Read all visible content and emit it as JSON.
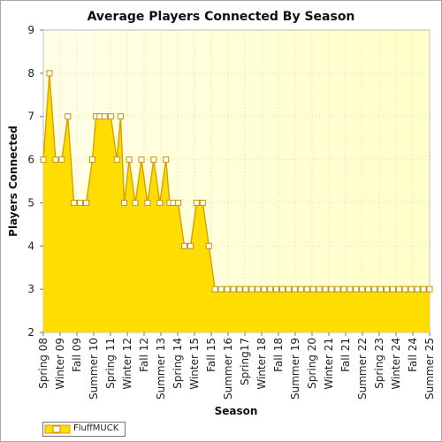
{
  "chart_data": {
    "type": "area",
    "title": "Average Players Connected By Season",
    "xlabel": "Season",
    "ylabel": "Players Connected",
    "ylim": [
      2,
      9
    ],
    "yticks": [
      2,
      3,
      4,
      5,
      6,
      7,
      8,
      9
    ],
    "grid": true,
    "legend_placement": "bottom-left",
    "colors": {
      "fill": "#ffdd00",
      "line": "#d6a100",
      "marker_fill": "#ffffff",
      "marker_edge": "#c59400",
      "plot_bg": "#ffffd0"
    },
    "x_labels": [
      "Spring 08",
      "Winter 09",
      "Fall 09",
      "Summer 10",
      "Spring 11",
      "Winter 12",
      "Fall 12",
      "Summer 13",
      "Spring 14",
      "Winter 15",
      "Fall 15",
      "Summer 16",
      "Spring17",
      "Winter 18",
      "Fall 18",
      "Summer 19",
      "Spring 20",
      "Winter 21",
      "Fall 21",
      "Summer 22",
      "Spring 23",
      "Winter 24",
      "Fall 24",
      "Summer 25"
    ],
    "series": [
      {
        "name": "FluffMUCK",
        "points": [
          [
            0,
            6
          ],
          [
            0.5,
            8
          ],
          [
            1,
            6
          ],
          [
            1.5,
            6
          ],
          [
            2,
            7
          ],
          [
            2.5,
            5
          ],
          [
            3,
            5
          ],
          [
            3.5,
            5
          ],
          [
            4,
            6
          ],
          [
            4.3,
            7
          ],
          [
            4.6,
            7
          ],
          [
            5,
            7
          ],
          [
            5.5,
            7
          ],
          [
            6,
            6
          ],
          [
            6.3,
            7
          ],
          [
            6.6,
            5
          ],
          [
            7,
            6
          ],
          [
            7.5,
            5
          ],
          [
            8,
            6
          ],
          [
            8.5,
            5
          ],
          [
            9,
            6
          ],
          [
            9.5,
            5
          ],
          [
            10,
            6
          ],
          [
            10.3,
            5
          ],
          [
            10.6,
            5
          ],
          [
            11,
            5
          ],
          [
            11.5,
            4
          ],
          [
            12,
            4
          ],
          [
            12.5,
            5
          ],
          [
            13,
            5
          ],
          [
            13.5,
            4
          ],
          [
            14,
            3
          ],
          [
            14.5,
            3
          ],
          [
            15,
            3
          ],
          [
            15.5,
            3
          ],
          [
            16,
            3
          ],
          [
            16.5,
            3
          ],
          [
            17,
            3
          ],
          [
            17.5,
            3
          ],
          [
            18,
            3
          ],
          [
            18.5,
            3
          ],
          [
            19,
            3
          ],
          [
            19.5,
            3
          ],
          [
            20,
            3
          ],
          [
            20.5,
            3
          ],
          [
            21,
            3
          ],
          [
            21.5,
            3
          ],
          [
            22,
            3
          ],
          [
            22.5,
            3
          ],
          [
            23,
            3
          ],
          [
            23.5,
            3
          ],
          [
            24,
            3
          ],
          [
            24.5,
            3
          ],
          [
            25,
            3
          ],
          [
            25.5,
            3
          ],
          [
            26,
            3
          ],
          [
            26.5,
            3
          ],
          [
            27,
            3
          ],
          [
            27.5,
            3
          ],
          [
            28,
            3
          ],
          [
            28.5,
            3
          ],
          [
            29,
            3
          ],
          [
            29.5,
            3
          ],
          [
            30,
            3
          ],
          [
            30.5,
            3
          ],
          [
            31,
            3
          ],
          [
            31.5,
            3
          ]
        ]
      }
    ]
  }
}
